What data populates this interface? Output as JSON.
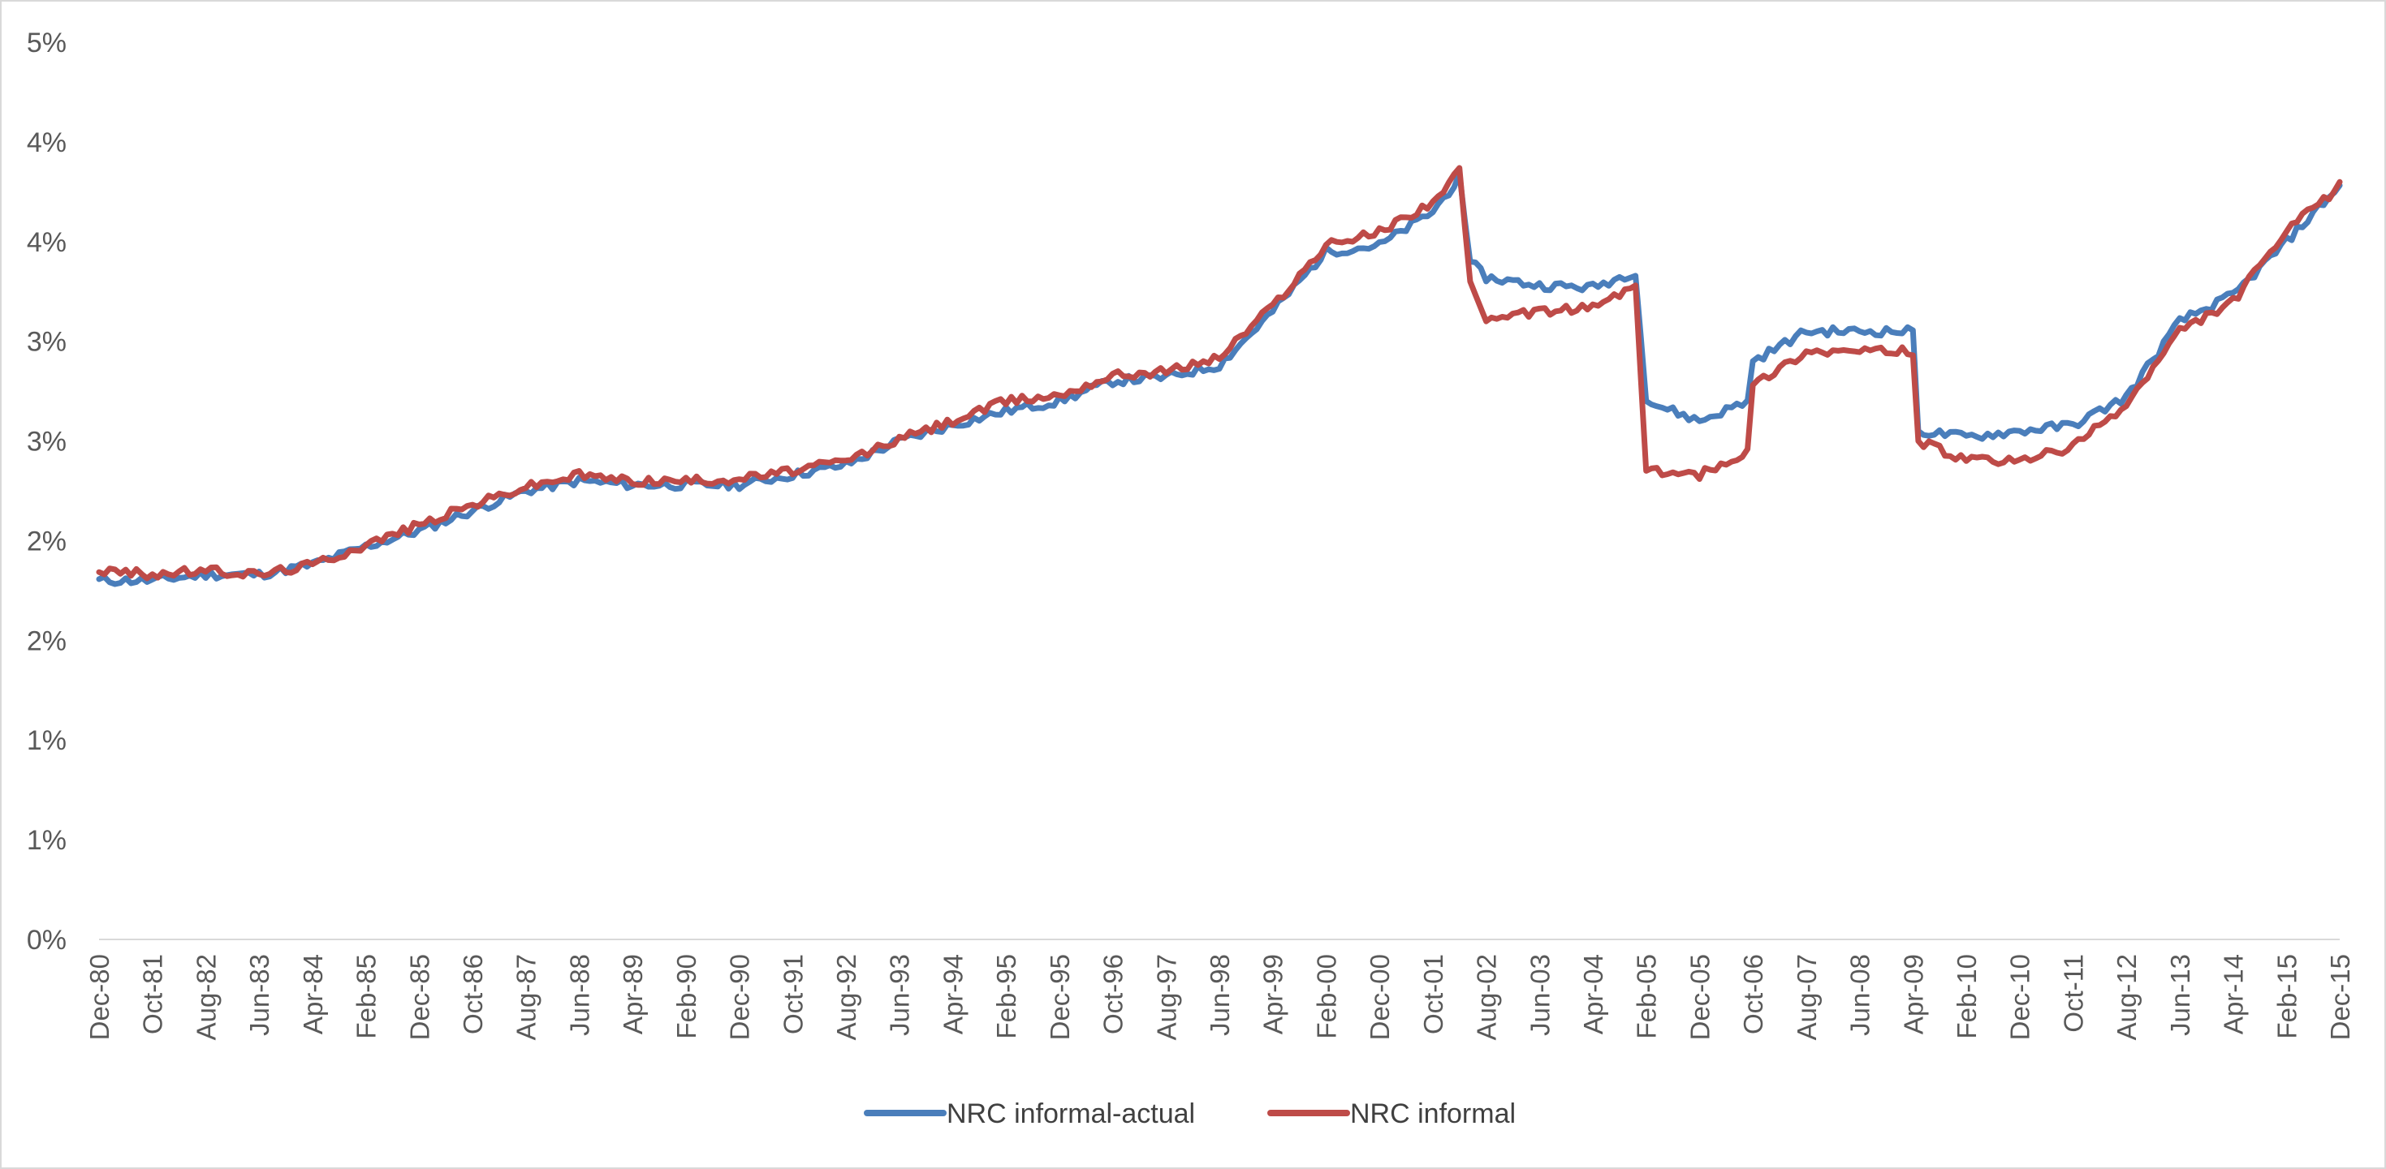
{
  "chart_data": {
    "type": "line",
    "title": "",
    "xlabel": "",
    "ylabel": "",
    "ylim": [
      0,
      4.5
    ],
    "y_ticks": [
      {
        "value": 0.0,
        "label": "0%"
      },
      {
        "value": 0.5,
        "label": "1%"
      },
      {
        "value": 1.0,
        "label": "1%"
      },
      {
        "value": 1.5,
        "label": "2%"
      },
      {
        "value": 2.0,
        "label": "2%"
      },
      {
        "value": 2.5,
        "label": "3%"
      },
      {
        "value": 3.0,
        "label": "3%"
      },
      {
        "value": 3.5,
        "label": "4%"
      },
      {
        "value": 4.0,
        "label": "4%"
      },
      {
        "value": 4.5,
        "label": "5%"
      }
    ],
    "x_ticks": [
      "Dec-80",
      "Oct-81",
      "Aug-82",
      "Jun-83",
      "Apr-84",
      "Feb-85",
      "Dec-85",
      "Oct-86",
      "Aug-87",
      "Jun-88",
      "Apr-89",
      "Feb-90",
      "Dec-90",
      "Oct-91",
      "Aug-92",
      "Jun-93",
      "Apr-94",
      "Feb-95",
      "Dec-95",
      "Oct-96",
      "Aug-97",
      "Jun-98",
      "Apr-99",
      "Feb-00",
      "Dec-00",
      "Oct-01",
      "Aug-02",
      "Jun-03",
      "Apr-04",
      "Feb-05",
      "Dec-05",
      "Oct-06",
      "Aug-07",
      "Jun-08",
      "Apr-09",
      "Feb-10",
      "Dec-10",
      "Oct-11",
      "Aug-12",
      "Jun-13",
      "Apr-14",
      "Feb-15",
      "Dec-15"
    ],
    "grid": false,
    "legend_position": "bottom",
    "series": [
      {
        "name": "NRC informal-actual",
        "color": "#4a7ebb",
        "points": [
          [
            "Dec-80",
            1.8
          ],
          [
            "Oct-81",
            1.8
          ],
          [
            "Aug-82",
            1.83
          ],
          [
            "Jun-83",
            1.83
          ],
          [
            "Apr-84",
            1.88
          ],
          [
            "Feb-85",
            1.97
          ],
          [
            "Dec-85",
            2.05
          ],
          [
            "Oct-86",
            2.15
          ],
          [
            "Aug-87",
            2.25
          ],
          [
            "Jun-88",
            2.3
          ],
          [
            "Apr-89",
            2.28
          ],
          [
            "Feb-90",
            2.28
          ],
          [
            "Dec-90",
            2.28
          ],
          [
            "Oct-91",
            2.33
          ],
          [
            "Aug-92",
            2.38
          ],
          [
            "Jun-93",
            2.5
          ],
          [
            "Apr-94",
            2.58
          ],
          [
            "Feb-95",
            2.65
          ],
          [
            "Dec-95",
            2.7
          ],
          [
            "Oct-96",
            2.8
          ],
          [
            "Aug-97",
            2.82
          ],
          [
            "Jun-98",
            2.88
          ],
          [
            "Apr-99",
            3.15
          ],
          [
            "Feb-00",
            3.45
          ],
          [
            "Dec-00",
            3.48
          ],
          [
            "Oct-01",
            3.65
          ],
          [
            "Mar-02",
            3.82
          ],
          [
            "May-02",
            3.4
          ],
          [
            "Aug-02",
            3.32
          ],
          [
            "Jun-03",
            3.28
          ],
          [
            "Apr-04",
            3.27
          ],
          [
            "Dec-04",
            3.35
          ],
          [
            "Feb-05",
            2.7
          ],
          [
            "Dec-05",
            2.6
          ],
          [
            "Sep-06",
            2.7
          ],
          [
            "Oct-06",
            2.9
          ],
          [
            "Aug-07",
            3.05
          ],
          [
            "Jun-08",
            3.05
          ],
          [
            "Apr-09",
            3.05
          ],
          [
            "May-09",
            2.55
          ],
          [
            "Feb-10",
            2.52
          ],
          [
            "Dec-10",
            2.55
          ],
          [
            "Oct-11",
            2.58
          ],
          [
            "Aug-12",
            2.72
          ],
          [
            "Jun-13",
            3.1
          ],
          [
            "Apr-14",
            3.23
          ],
          [
            "Feb-15",
            3.5
          ],
          [
            "Dec-15",
            3.78
          ]
        ]
      },
      {
        "name": "NRC informal",
        "color": "#be4b48",
        "points": [
          [
            "Dec-80",
            1.85
          ],
          [
            "Oct-81",
            1.83
          ],
          [
            "Aug-82",
            1.85
          ],
          [
            "Jun-83",
            1.83
          ],
          [
            "Apr-84",
            1.88
          ],
          [
            "Feb-85",
            1.98
          ],
          [
            "Dec-85",
            2.08
          ],
          [
            "Oct-86",
            2.18
          ],
          [
            "Aug-87",
            2.27
          ],
          [
            "Jun-88",
            2.33
          ],
          [
            "Apr-89",
            2.3
          ],
          [
            "Feb-90",
            2.3
          ],
          [
            "Dec-90",
            2.31
          ],
          [
            "Oct-91",
            2.35
          ],
          [
            "Aug-92",
            2.4
          ],
          [
            "Jun-93",
            2.51
          ],
          [
            "Apr-94",
            2.6
          ],
          [
            "Feb-95",
            2.7
          ],
          [
            "Dec-95",
            2.73
          ],
          [
            "Oct-96",
            2.83
          ],
          [
            "Aug-97",
            2.85
          ],
          [
            "Jun-98",
            2.92
          ],
          [
            "Apr-99",
            3.18
          ],
          [
            "Feb-00",
            3.48
          ],
          [
            "Dec-00",
            3.55
          ],
          [
            "Oct-01",
            3.7
          ],
          [
            "Mar-02",
            3.85
          ],
          [
            "May-02",
            3.3
          ],
          [
            "Aug-02",
            3.1
          ],
          [
            "Jun-03",
            3.15
          ],
          [
            "Apr-04",
            3.17
          ],
          [
            "Dec-04",
            3.28
          ],
          [
            "Feb-05",
            2.35
          ],
          [
            "Dec-05",
            2.33
          ],
          [
            "Sep-06",
            2.45
          ],
          [
            "Oct-06",
            2.78
          ],
          [
            "Aug-07",
            2.95
          ],
          [
            "Jun-08",
            2.95
          ],
          [
            "Apr-09",
            2.95
          ],
          [
            "May-09",
            2.5
          ],
          [
            "Feb-10",
            2.4
          ],
          [
            "Dec-10",
            2.4
          ],
          [
            "Oct-11",
            2.47
          ],
          [
            "Aug-12",
            2.68
          ],
          [
            "Jun-13",
            3.05
          ],
          [
            "Apr-14",
            3.2
          ],
          [
            "Feb-15",
            3.55
          ],
          [
            "Dec-15",
            3.78
          ]
        ]
      }
    ]
  }
}
